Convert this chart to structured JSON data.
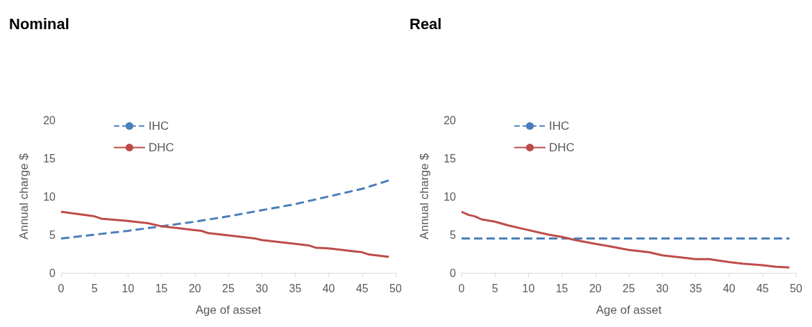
{
  "chart_data": [
    {
      "type": "line",
      "title": "Nominal",
      "xlabel": "Age of asset",
      "ylabel": "Annual charge $",
      "xlim": [
        0,
        50
      ],
      "xticks": [
        0,
        5,
        10,
        15,
        20,
        25,
        30,
        35,
        40,
        45,
        50
      ],
      "ylim": [
        0,
        20
      ],
      "yticks": [
        0,
        5,
        10,
        15,
        20
      ],
      "grid": false,
      "legend": "top left",
      "marker": "none",
      "series": [
        {
          "name": "IHC",
          "color": "#4a7ebb",
          "line_style": "dashed",
          "x": [
            0,
            5,
            10,
            15,
            20,
            25,
            30,
            35,
            40,
            45,
            49
          ],
          "values": [
            4.5,
            5.0,
            5.5,
            6.1,
            6.7,
            7.4,
            8.2,
            9.0,
            10.0,
            11.0,
            12.1
          ]
        },
        {
          "name": "DHC",
          "color": "#be4b48",
          "line_style": "solid",
          "x": [
            0,
            5,
            6,
            10,
            13,
            15,
            20,
            21,
            22,
            25,
            29,
            30,
            35,
            37,
            38,
            40,
            45,
            46,
            49
          ],
          "values": [
            8.0,
            7.4,
            7.1,
            6.8,
            6.5,
            6.1,
            5.6,
            5.5,
            5.2,
            4.9,
            4.5,
            4.3,
            3.8,
            3.6,
            3.3,
            3.2,
            2.7,
            2.4,
            2.1
          ]
        }
      ]
    },
    {
      "type": "line",
      "title": "Real",
      "xlabel": "Age of asset",
      "ylabel": "Annual charge $",
      "xlim": [
        0,
        50
      ],
      "xticks": [
        0,
        5,
        10,
        15,
        20,
        25,
        30,
        35,
        40,
        45,
        50
      ],
      "ylim": [
        0,
        20
      ],
      "yticks": [
        0,
        5,
        10,
        15,
        20
      ],
      "grid": false,
      "legend": "top left",
      "marker": "none",
      "series": [
        {
          "name": "IHC",
          "color": "#4a7ebb",
          "line_style": "dashed",
          "x": [
            0,
            49
          ],
          "values": [
            4.5,
            4.5
          ]
        },
        {
          "name": "DHC",
          "color": "#be4b48",
          "line_style": "solid",
          "x": [
            0,
            1,
            2,
            3,
            5,
            7,
            10,
            13,
            15,
            17,
            20,
            22,
            25,
            28,
            30,
            33,
            35,
            37,
            40,
            42,
            45,
            47,
            49
          ],
          "values": [
            8.0,
            7.6,
            7.4,
            7.0,
            6.7,
            6.2,
            5.6,
            5.0,
            4.7,
            4.3,
            3.8,
            3.5,
            3.0,
            2.7,
            2.3,
            2.0,
            1.8,
            1.8,
            1.4,
            1.2,
            1.0,
            0.8,
            0.7
          ]
        }
      ]
    }
  ]
}
